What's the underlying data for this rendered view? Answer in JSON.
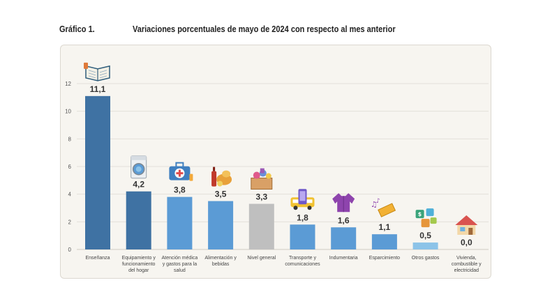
{
  "header": {
    "figure_number": "Gráfico 1.",
    "title": "Variaciones porcentuales de mayo de 2024 con respecto al mes anterior"
  },
  "chart_data": {
    "type": "bar",
    "ylim": [
      0,
      12
    ],
    "yticks": [
      0,
      2,
      4,
      6,
      8,
      10,
      12
    ],
    "grid": true,
    "categories": [
      "Enseñanza",
      "Equipamiento y funcionamiento del hogar",
      "Atención médica y gastos para la salud",
      "Alimentación y bebidas",
      "Nivel general",
      "Transporte y comunicaciones",
      "Indumentaria",
      "Esparcimiento",
      "Otros gastos",
      "Vivienda, combustible y electricidad"
    ],
    "category_lines": [
      [
        "Enseñanza"
      ],
      [
        "Equipamiento y",
        "funcionamiento",
        "del hogar"
      ],
      [
        "Atención médica",
        "y gastos para la",
        "salud"
      ],
      [
        "Alimentación y",
        "bebidas"
      ],
      [
        "Nivel general"
      ],
      [
        "Transporte y",
        "comunicaciones"
      ],
      [
        "Indumentaria"
      ],
      [
        "Esparcimiento"
      ],
      [
        "Otros gastos"
      ],
      [
        "Vivienda,",
        "combustible y",
        "electricidad"
      ]
    ],
    "values": [
      11.1,
      4.2,
      3.8,
      3.5,
      3.3,
      1.8,
      1.6,
      1.1,
      0.5,
      0.0
    ],
    "value_labels": [
      "11,1",
      "4,2",
      "3,8",
      "3,5",
      "3,3",
      "1,8",
      "1,6",
      "1,1",
      "0,5",
      "0,0"
    ],
    "bar_colors": [
      "#3f72a3",
      "#3f72a3",
      "#5b9bd5",
      "#5b9bd5",
      "#bfbfbf",
      "#5b9bd5",
      "#5b9bd5",
      "#5b9bd5",
      "#8cc3e8",
      "#8cc3e8"
    ],
    "icons": [
      "book-icon",
      "washing-machine-icon",
      "medical-kit-icon",
      "food-icon",
      "basket-icon",
      "transport-icon",
      "clothing-icon",
      "ticket-icon",
      "money-puzzle-icon",
      "house-icon"
    ]
  }
}
